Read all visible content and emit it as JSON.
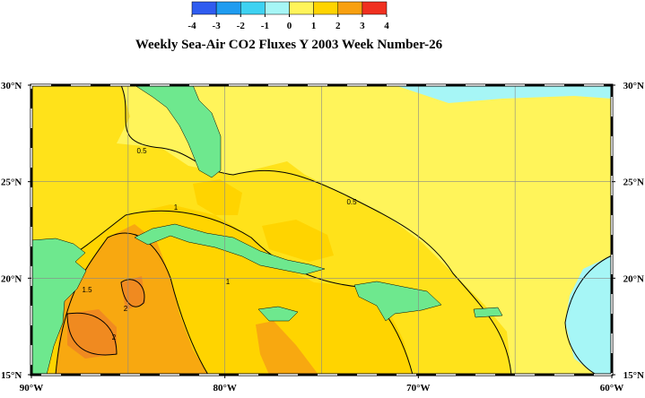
{
  "title": "Weekly Sea-Air CO2 Fluxes Y 2003 Week Number-26",
  "colorbar": {
    "ticks": [
      -4,
      -3,
      -2,
      -1,
      0,
      1,
      2,
      3,
      4
    ],
    "colors": [
      "#2f5cf0",
      "#1f9cf0",
      "#3ed2f2",
      "#a6f6f6",
      "#fff45a",
      "#ffd400",
      "#f8a010",
      "#f03020"
    ]
  },
  "map": {
    "xlim": [
      -90,
      -60
    ],
    "ylim": [
      15,
      30
    ],
    "xticks": [
      {
        "value": -90,
        "label": "90°W"
      },
      {
        "value": -80,
        "label": "80°W"
      },
      {
        "value": -70,
        "label": "70°W"
      },
      {
        "value": -60,
        "label": "60°W"
      }
    ],
    "yticks": [
      {
        "value": 15,
        "label": "15°N"
      },
      {
        "value": 20,
        "label": "20°N"
      },
      {
        "value": 25,
        "label": "25°N"
      },
      {
        "value": 30,
        "label": "30°N"
      }
    ],
    "grid": {
      "lon": [
        -85,
        -80,
        -75,
        -70,
        -65
      ],
      "lat": [
        20,
        25
      ]
    },
    "contour_labels": [
      0.5,
      0.5,
      1,
      1,
      1.5,
      2,
      2
    ]
  }
}
